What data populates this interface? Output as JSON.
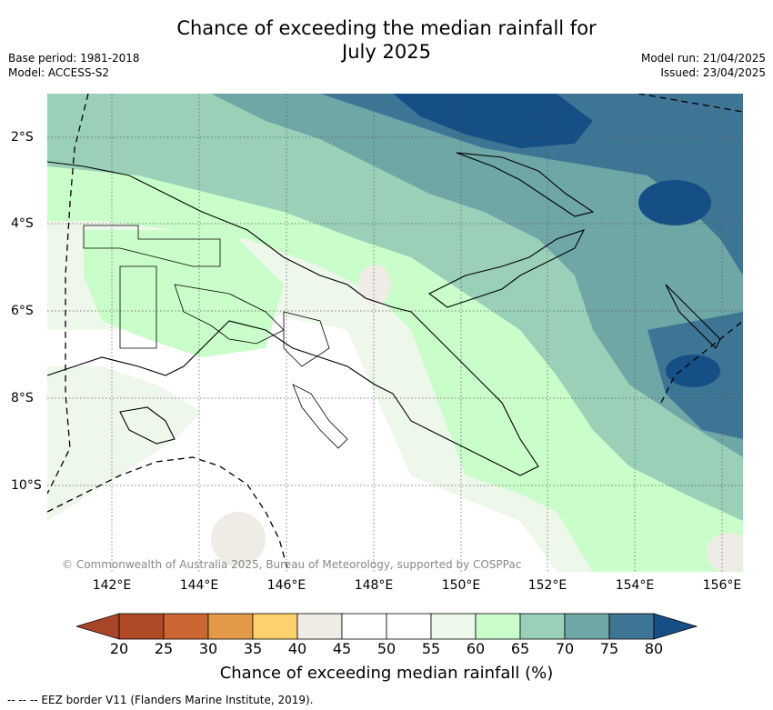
{
  "title_line1": "Chance of exceeding the median rainfall for",
  "title_line2": "July 2025",
  "base_period": "Base period: 1981-2018",
  "model": "Model: ACCESS-S2",
  "model_run": "Model run: 21/04/2025",
  "issued": "Issued: 23/04/2025",
  "lon_labels": [
    "142°E",
    "144°E",
    "146°E",
    "148°E",
    "150°E",
    "152°E",
    "154°E",
    "156°E"
  ],
  "lat_labels": [
    "2°S",
    "4°S",
    "6°S",
    "8°S",
    "10°S"
  ],
  "copyright": "© Commonwealth of Australia 2025, Bureau of Meteorology, supported by COSPPac",
  "colorbar": {
    "title": "Chance of exceeding median rainfall (%)",
    "ticks": [
      "20",
      "25",
      "30",
      "35",
      "40",
      "45",
      "50",
      "55",
      "60",
      "65",
      "70",
      "75",
      "80"
    ],
    "colors": [
      "#b04a26",
      "#cc6633",
      "#e39a48",
      "#fdd16b",
      "#efece6",
      "#ffffff",
      "#ffffff",
      "#edf7ea",
      "#c9fdc9",
      "#9ad0b7",
      "#6fa7a7",
      "#3f7594"
    ],
    "under_color": "#a8462a",
    "over_color": "#164f86"
  },
  "footnote": "--  --  -- EEZ border V11 (Flanders Marine Institute, 2019)."
}
